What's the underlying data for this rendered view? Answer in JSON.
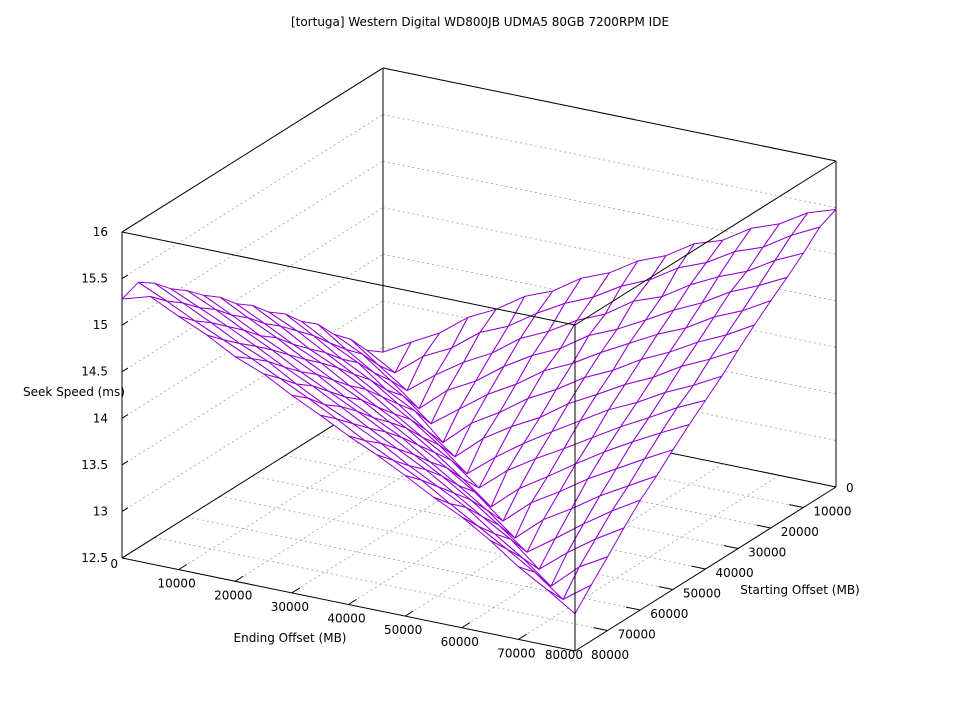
{
  "chart_data": {
    "type": "surface",
    "title": "[tortuga] Western Digital WD800JB UDMA5 80GB 7200RPM IDE",
    "xlabel": "Ending Offset (MB)",
    "ylabel": "Starting Offset (MB)",
    "zlabel": "Seek Speed (ms)",
    "xlim": [
      0,
      80000
    ],
    "ylim": [
      0,
      80000
    ],
    "zlim": [
      12.5,
      16
    ],
    "x_ticks": [
      "0",
      "10000",
      "20000",
      "30000",
      "40000",
      "50000",
      "60000",
      "70000",
      "80000"
    ],
    "y_ticks": [
      "0",
      "10000",
      "20000",
      "30000",
      "40000",
      "50000",
      "60000",
      "70000",
      "80000"
    ],
    "z_ticks": [
      "12.5",
      "13",
      "13.5",
      "14",
      "14.5",
      "15",
      "15.5",
      "16"
    ],
    "grid": true,
    "colors": {
      "surface_top": "#9400d3",
      "surface_bottom": "#009e73",
      "grid": "#a0a0a0",
      "axes": "#000000"
    },
    "grid_step": 5000,
    "z_matrix_rows_starting_offset_cols_ending_offset": [
      [
        12.95,
        13.12,
        13.28,
        13.51,
        13.66,
        13.86,
        13.98,
        14.18,
        14.3,
        14.49,
        14.61,
        14.8,
        14.9,
        15.09,
        15.2,
        15.38,
        15.48
      ],
      [
        13.08,
        12.9,
        13.14,
        13.29,
        13.52,
        13.65,
        13.85,
        14.02,
        14.15,
        14.33,
        14.46,
        14.65,
        14.77,
        14.95,
        15.06,
        15.25,
        15.4
      ],
      [
        13.31,
        13.09,
        12.88,
        13.11,
        13.31,
        13.47,
        13.69,
        13.83,
        14.01,
        14.14,
        14.34,
        14.45,
        14.64,
        14.79,
        14.91,
        15.09,
        15.23
      ],
      [
        13.47,
        13.32,
        13.1,
        12.86,
        13.12,
        13.28,
        13.5,
        13.68,
        13.82,
        14.02,
        14.15,
        14.31,
        14.48,
        14.62,
        14.8,
        14.93,
        15.08
      ],
      [
        13.69,
        13.48,
        13.29,
        13.11,
        12.87,
        13.09,
        13.31,
        13.48,
        13.69,
        13.83,
        14.01,
        14.17,
        14.33,
        14.46,
        14.64,
        14.77,
        14.94
      ],
      [
        13.83,
        13.66,
        13.51,
        13.28,
        13.12,
        12.84,
        13.11,
        13.29,
        13.5,
        13.66,
        13.85,
        13.99,
        14.17,
        14.31,
        14.48,
        14.62,
        14.79
      ],
      [
        14.02,
        13.85,
        13.66,
        13.5,
        13.3,
        13.08,
        12.86,
        13.12,
        13.31,
        13.47,
        13.68,
        13.84,
        14.01,
        14.15,
        14.33,
        14.47,
        14.63
      ],
      [
        14.15,
        14.01,
        13.84,
        13.67,
        13.49,
        13.31,
        13.1,
        12.85,
        13.09,
        13.3,
        13.49,
        13.67,
        13.85,
        13.99,
        14.16,
        14.3,
        14.46
      ],
      [
        14.33,
        14.17,
        13.99,
        13.85,
        13.68,
        13.48,
        13.29,
        13.11,
        12.87,
        13.12,
        13.31,
        13.48,
        13.66,
        13.84,
        14.0,
        14.17,
        14.31
      ],
      [
        14.46,
        14.31,
        14.15,
        14.01,
        13.83,
        13.66,
        13.5,
        13.3,
        13.08,
        12.84,
        13.1,
        13.29,
        13.49,
        13.68,
        13.85,
        14.01,
        14.16
      ],
      [
        14.64,
        14.48,
        14.33,
        14.16,
        14.0,
        13.85,
        13.67,
        13.49,
        13.31,
        13.11,
        12.86,
        13.12,
        13.3,
        13.5,
        13.67,
        13.84,
        14.0
      ],
      [
        14.77,
        14.62,
        14.46,
        14.32,
        14.17,
        13.99,
        13.83,
        13.68,
        13.48,
        13.29,
        13.09,
        12.85,
        13.11,
        13.29,
        13.49,
        13.66,
        13.83
      ],
      [
        14.93,
        14.79,
        14.63,
        14.48,
        14.31,
        14.16,
        14.01,
        13.85,
        13.67,
        13.5,
        13.31,
        13.1,
        12.87,
        13.08,
        13.3,
        13.5,
        13.68
      ],
      [
        15.06,
        14.92,
        14.78,
        14.63,
        14.47,
        14.33,
        14.17,
        14.0,
        13.84,
        13.68,
        13.49,
        13.3,
        13.12,
        12.86,
        13.1,
        13.31,
        13.49
      ],
      [
        15.23,
        15.08,
        14.93,
        14.77,
        14.64,
        14.46,
        14.3,
        14.16,
        14.01,
        13.83,
        13.67,
        13.51,
        13.29,
        13.09,
        12.85,
        13.12,
        13.29
      ],
      [
        15.35,
        15.21,
        15.06,
        14.92,
        14.78,
        14.63,
        14.48,
        14.32,
        14.15,
        14.0,
        13.85,
        13.66,
        13.48,
        13.3,
        13.11,
        12.88,
        13.1
      ],
      [
        15.28,
        15.37,
        15.22,
        15.08,
        14.91,
        14.79,
        14.62,
        14.47,
        14.31,
        14.17,
        14.01,
        13.84,
        13.69,
        13.5,
        13.28,
        13.1,
        12.9
      ]
    ]
  }
}
